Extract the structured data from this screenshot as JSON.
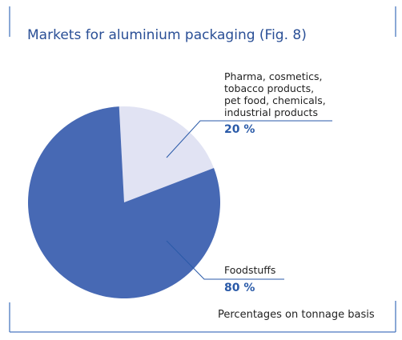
{
  "chart_data": {
    "type": "pie",
    "title": "Markets for aluminium packaging (Fig. 8)",
    "note": "Percentages on tonnage basis",
    "categories": [
      "Pharma, cosmetics,\ntobacco products,\npet food, chemicals,\nindustrial products",
      "Foodstuffs"
    ],
    "values": [
      20,
      80
    ],
    "value_labels": [
      "20 %",
      "80 %"
    ],
    "colors": [
      "#e1e3f3",
      "#4769b4"
    ]
  }
}
